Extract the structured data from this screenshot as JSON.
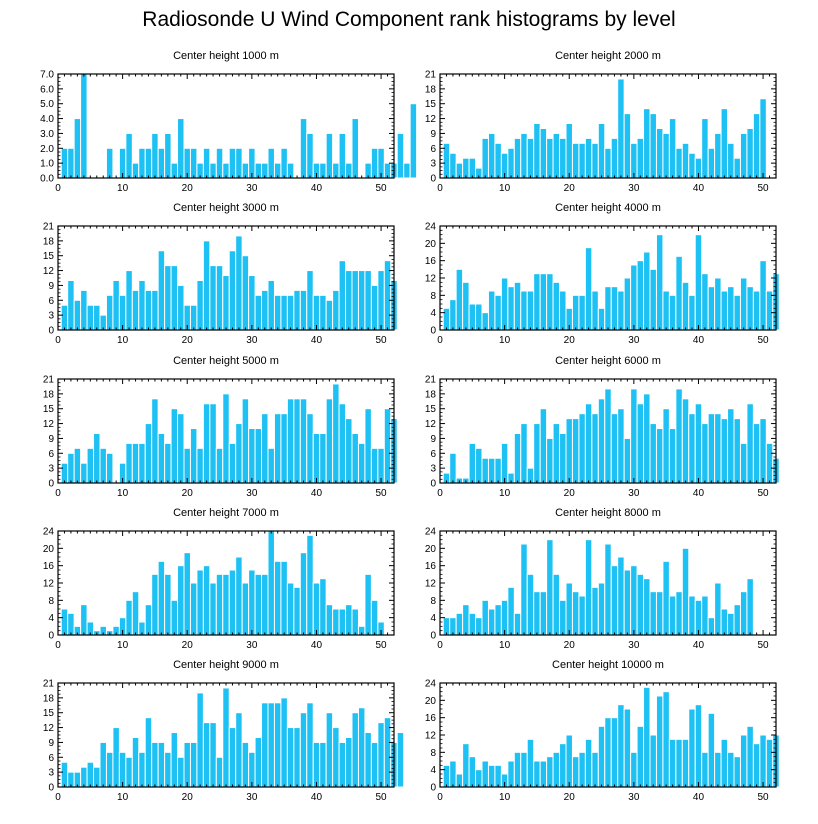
{
  "title": "Radiosonde U Wind Component rank histograms by level",
  "colors": {
    "bar": "#1ec1f4",
    "bar_edge": "#ffffff",
    "axis": "#000000"
  },
  "chart_data": [
    {
      "type": "bar",
      "title": "Center height 1000 m",
      "x_ticks": [
        0,
        10,
        20,
        30,
        40,
        50
      ],
      "xlim": [
        0,
        52
      ],
      "ylim": [
        0,
        7
      ],
      "y_ticks": [
        0,
        1,
        2,
        3,
        4,
        5,
        6,
        7
      ],
      "y_tick_labels": [
        "0.0",
        "1.0",
        "2.0",
        "3.0",
        "4.0",
        "5.0",
        "6.0",
        "7.0"
      ],
      "values": [
        2,
        2,
        4,
        7,
        0,
        0,
        0,
        2,
        0,
        2,
        3,
        1,
        2,
        2,
        3,
        2,
        3,
        1,
        4,
        2,
        2,
        1,
        2,
        1,
        2,
        1,
        2,
        2,
        1,
        2,
        1,
        1,
        2,
        1,
        2,
        1,
        0,
        4,
        3,
        1,
        1,
        3,
        1,
        3,
        1,
        4,
        0,
        1,
        2,
        2,
        1,
        1,
        3,
        1,
        5
      ]
    },
    {
      "type": "bar",
      "title": "Center height 2000 m",
      "x_ticks": [
        0,
        10,
        20,
        30,
        40,
        50
      ],
      "xlim": [
        0,
        52
      ],
      "ylim": [
        0,
        21
      ],
      "y_ticks": [
        0,
        3,
        6,
        9,
        12,
        15,
        18,
        21
      ],
      "y_tick_labels": [
        "0",
        "3",
        "6",
        "9",
        "12",
        "15",
        "18",
        "21"
      ],
      "values": [
        7,
        5,
        3,
        4,
        4,
        2,
        8,
        9,
        7,
        5,
        6,
        8,
        9,
        8,
        11,
        10,
        8,
        9,
        8,
        11,
        7,
        7,
        8,
        7,
        11,
        6,
        8,
        20,
        13,
        7,
        8,
        14,
        13,
        10,
        9,
        12,
        6,
        7,
        5,
        4,
        12,
        6,
        9,
        14,
        7,
        4,
        9,
        10,
        13,
        16
      ]
    },
    {
      "type": "bar",
      "title": "Center height 3000 m",
      "x_ticks": [
        0,
        10,
        20,
        30,
        40,
        50
      ],
      "xlim": [
        0,
        52
      ],
      "ylim": [
        0,
        21
      ],
      "y_ticks": [
        0,
        3,
        6,
        9,
        12,
        15,
        18,
        21
      ],
      "y_tick_labels": [
        "0",
        "3",
        "6",
        "9",
        "12",
        "15",
        "18",
        "21"
      ],
      "values": [
        5,
        10,
        6,
        8,
        5,
        5,
        3,
        7,
        10,
        7,
        12,
        8,
        10,
        8,
        8,
        16,
        13,
        13,
        9,
        5,
        5,
        10,
        18,
        13,
        13,
        11,
        16,
        19,
        15,
        11,
        7,
        8,
        10,
        7,
        7,
        7,
        8,
        8,
        12,
        7,
        7,
        6,
        8,
        14,
        12,
        12,
        12,
        12,
        9,
        12,
        14,
        10
      ]
    },
    {
      "type": "bar",
      "title": "Center height 4000 m",
      "x_ticks": [
        0,
        10,
        20,
        30,
        40,
        50
      ],
      "xlim": [
        0,
        52
      ],
      "ylim": [
        0,
        24
      ],
      "y_ticks": [
        0,
        4,
        8,
        12,
        16,
        20,
        24
      ],
      "y_tick_labels": [
        "0",
        "4",
        "8",
        "12",
        "16",
        "20",
        "24"
      ],
      "values": [
        5,
        7,
        14,
        11,
        6,
        6,
        4,
        9,
        8,
        12,
        10,
        11,
        9,
        9,
        13,
        13,
        13,
        11,
        9,
        5,
        8,
        8,
        19,
        9,
        5,
        10,
        10,
        9,
        12,
        15,
        16,
        18,
        14,
        22,
        9,
        8,
        17,
        11,
        8,
        22,
        13,
        10,
        12,
        9,
        10,
        8,
        12,
        10,
        9,
        16,
        9,
        13
      ]
    },
    {
      "type": "bar",
      "title": "Center height 5000 m",
      "x_ticks": [
        0,
        10,
        20,
        30,
        40,
        50
      ],
      "xlim": [
        0,
        52
      ],
      "ylim": [
        0,
        21
      ],
      "y_ticks": [
        0,
        3,
        6,
        9,
        12,
        15,
        18,
        21
      ],
      "y_tick_labels": [
        "0",
        "3",
        "6",
        "9",
        "12",
        "15",
        "18",
        "21"
      ],
      "values": [
        4,
        6,
        7,
        4,
        7,
        10,
        7,
        6,
        0,
        4,
        8,
        8,
        8,
        12,
        17,
        10,
        8,
        15,
        14,
        7,
        11,
        7,
        16,
        16,
        7,
        18,
        8,
        12,
        17,
        11,
        11,
        14,
        7,
        14,
        14,
        17,
        17,
        17,
        14,
        10,
        10,
        17,
        20,
        16,
        13,
        10,
        8,
        15,
        7,
        7,
        15,
        13
      ]
    },
    {
      "type": "bar",
      "title": "Center height 6000 m",
      "x_ticks": [
        0,
        10,
        20,
        30,
        40,
        50
      ],
      "xlim": [
        0,
        52
      ],
      "ylim": [
        0,
        21
      ],
      "y_ticks": [
        0,
        3,
        6,
        9,
        12,
        15,
        18,
        21
      ],
      "y_tick_labels": [
        "0",
        "3",
        "6",
        "9",
        "12",
        "15",
        "18",
        "21"
      ],
      "values": [
        2,
        6,
        1,
        1,
        8,
        7,
        5,
        5,
        5,
        8,
        2,
        10,
        12,
        3,
        12,
        15,
        9,
        12,
        10,
        13,
        13,
        14,
        16,
        14,
        17,
        19,
        14,
        15,
        9,
        19,
        16,
        18,
        12,
        11,
        15,
        11,
        19,
        17,
        14,
        16,
        12,
        14,
        14,
        13,
        15,
        13,
        8,
        16,
        12,
        13,
        8,
        5
      ]
    },
    {
      "type": "bar",
      "title": "Center height 7000 m",
      "x_ticks": [
        0,
        10,
        20,
        30,
        40,
        50
      ],
      "xlim": [
        0,
        52
      ],
      "ylim": [
        0,
        24
      ],
      "y_ticks": [
        0,
        4,
        8,
        12,
        16,
        20,
        24
      ],
      "y_tick_labels": [
        "0",
        "4",
        "8",
        "12",
        "16",
        "20",
        "24"
      ],
      "values": [
        6,
        5,
        2,
        7,
        3,
        1,
        2,
        1,
        2,
        4,
        8,
        10,
        3,
        7,
        14,
        17,
        14,
        8,
        16,
        19,
        12,
        15,
        16,
        12,
        14,
        14,
        15,
        18,
        12,
        15,
        14,
        14,
        24,
        17,
        17,
        12,
        11,
        19,
        23,
        12,
        13,
        7,
        6,
        6,
        7,
        6,
        2,
        14,
        8,
        3
      ]
    },
    {
      "type": "bar",
      "title": "Center height 8000 m",
      "x_ticks": [
        0,
        10,
        20,
        30,
        40,
        50
      ],
      "xlim": [
        0,
        52
      ],
      "ylim": [
        0,
        24
      ],
      "y_ticks": [
        0,
        4,
        8,
        12,
        16,
        20,
        24
      ],
      "y_tick_labels": [
        "0",
        "4",
        "8",
        "12",
        "16",
        "20",
        "24"
      ],
      "values": [
        4,
        4,
        5,
        7,
        5,
        4,
        8,
        6,
        7,
        8,
        11,
        5,
        21,
        14,
        10,
        10,
        22,
        14,
        8,
        12,
        10,
        9,
        22,
        11,
        12,
        21,
        16,
        18,
        15,
        16,
        14,
        13,
        10,
        10,
        17,
        9,
        10,
        20,
        9,
        8,
        9,
        4,
        12,
        6,
        5,
        7,
        10,
        13
      ]
    },
    {
      "type": "bar",
      "title": "Center height 9000 m",
      "x_ticks": [
        0,
        10,
        20,
        30,
        40,
        50
      ],
      "xlim": [
        0,
        52
      ],
      "ylim": [
        0,
        21
      ],
      "y_ticks": [
        0,
        3,
        6,
        9,
        12,
        15,
        18,
        21
      ],
      "y_tick_labels": [
        "0",
        "3",
        "6",
        "9",
        "12",
        "15",
        "18",
        "21"
      ],
      "values": [
        5,
        3,
        3,
        4,
        5,
        4,
        9,
        7,
        12,
        7,
        6,
        10,
        7,
        14,
        9,
        9,
        7,
        11,
        6,
        9,
        9,
        19,
        13,
        13,
        6,
        20,
        12,
        15,
        9,
        7,
        10,
        17,
        17,
        17,
        18,
        12,
        12,
        15,
        17,
        9,
        9,
        15,
        12,
        9,
        10,
        15,
        16,
        11,
        9,
        13,
        14,
        9,
        11
      ]
    },
    {
      "type": "bar",
      "title": "Center height 10000 m",
      "x_ticks": [
        0,
        10,
        20,
        30,
        40,
        50
      ],
      "xlim": [
        0,
        52
      ],
      "ylim": [
        0,
        24
      ],
      "y_ticks": [
        0,
        4,
        8,
        12,
        16,
        20,
        24
      ],
      "y_tick_labels": [
        "0",
        "4",
        "8",
        "12",
        "16",
        "20",
        "24"
      ],
      "values": [
        5,
        6,
        3,
        10,
        7,
        4,
        6,
        5,
        5,
        3,
        6,
        8,
        8,
        11,
        6,
        6,
        7,
        8,
        10,
        12,
        7,
        8,
        11,
        8,
        14,
        16,
        16,
        19,
        18,
        8,
        14,
        23,
        12,
        21,
        22,
        11,
        11,
        11,
        18,
        19,
        8,
        17,
        8,
        11,
        8,
        7,
        12,
        14,
        10,
        12,
        11,
        12
      ]
    }
  ]
}
